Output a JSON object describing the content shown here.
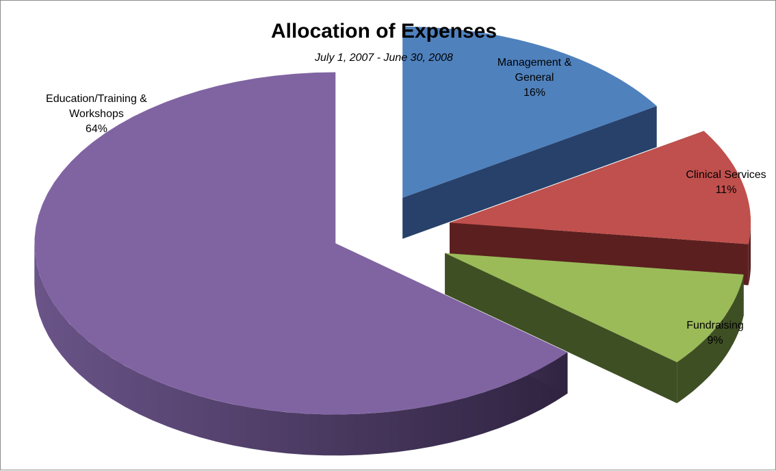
{
  "chart_data": {
    "type": "pie",
    "title": "Allocation of Expenses",
    "subtitle": "July 1, 2007 - June 30, 2008",
    "slices": [
      {
        "label_lines": [
          "Management &",
          "General"
        ],
        "pct_label": "16%",
        "value": 16,
        "top": "#4f81bd",
        "side": "#27416a"
      },
      {
        "label_lines": [
          "Clinical Services"
        ],
        "pct_label": "11%",
        "value": 11,
        "top": "#c0504d",
        "side": "#5b1f1f"
      },
      {
        "label_lines": [
          "Fundraising"
        ],
        "pct_label": "9%",
        "value": 9,
        "top": "#9bbb59",
        "side": "#3f4f24"
      },
      {
        "label_lines": [
          "Education/Training &",
          "Workshops"
        ],
        "pct_label": "64%",
        "value": 64,
        "top": "#8064a2",
        "side": "#3f2f55"
      }
    ]
  }
}
